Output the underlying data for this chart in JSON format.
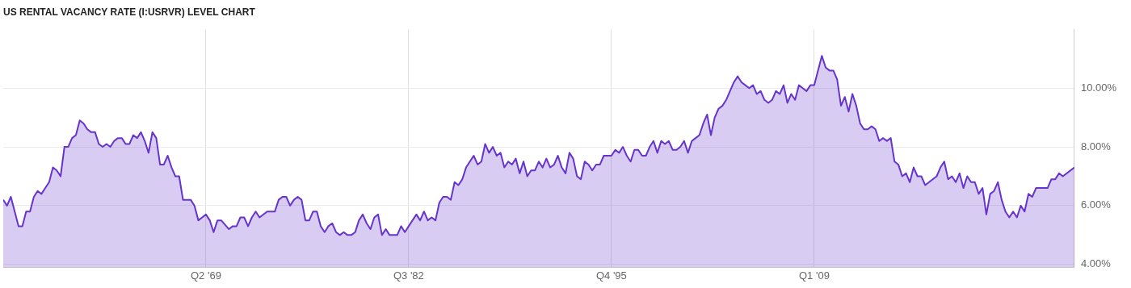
{
  "chart_data": {
    "type": "area",
    "title": "US RENTAL VACANCY RATE (I:USRVR) LEVEL CHART",
    "color": "#6633cc",
    "x": [
      "1956-01",
      "1956-04",
      "1956-07",
      "1957-01",
      "1957-04",
      "1957-07",
      "1957-10",
      "1958-01",
      "1958-04",
      "1958-07",
      "1958-10",
      "1959-01",
      "1959-04",
      "1959-07",
      "1959-10",
      "1960-01",
      "1960-04",
      "1960-07",
      "1960-10",
      "1961-01",
      "1961-04",
      "1961-07",
      "1961-10",
      "1962-01",
      "1962-04",
      "1962-07",
      "1962-10",
      "1963-01",
      "1963-04",
      "1963-07",
      "1963-10",
      "1964-01",
      "1964-04",
      "1964-07",
      "1964-10",
      "1965-01",
      "1965-04",
      "1965-07",
      "1965-10",
      "1966-01",
      "1966-04",
      "1966-07",
      "1966-10",
      "1967-01",
      "1967-04",
      "1967-07",
      "1967-10",
      "1968-01",
      "1968-04",
      "1968-07",
      "1968-10",
      "1969-01",
      "1969-04",
      "1969-07",
      "1969-10",
      "1970-01",
      "1970-04",
      "1970-10",
      "1971-01",
      "1971-04",
      "1971-07",
      "1971-10",
      "1972-01",
      "1972-04",
      "1972-07",
      "1972-10",
      "1973-04",
      "1973-10",
      "1974-01",
      "1974-04",
      "1974-07",
      "1974-10",
      "1975-01",
      "1975-04",
      "1975-07",
      "1975-10",
      "1976-01",
      "1976-04",
      "1976-07",
      "1976-10",
      "1977-01",
      "1977-04",
      "1977-07",
      "1977-10",
      "1978-01",
      "1978-04",
      "1978-07",
      "1978-10",
      "1979-01",
      "1979-04",
      "1979-07",
      "1979-10",
      "1980-01",
      "1980-04",
      "1980-07",
      "1980-10",
      "1981-01",
      "1981-04",
      "1981-10",
      "1982-01",
      "1982-04",
      "1982-07",
      "1983-01",
      "1983-04",
      "1983-07",
      "1983-10",
      "1984-01",
      "1984-04",
      "1984-07",
      "1984-10",
      "1985-01",
      "1985-04",
      "1985-07",
      "1985-10",
      "1986-01",
      "1986-04",
      "1986-07",
      "1986-10",
      "1987-01",
      "1987-04",
      "1987-07",
      "1987-10",
      "1988-01",
      "1988-04",
      "1988-07",
      "1988-10",
      "1989-01",
      "1989-04",
      "1989-07",
      "1989-10",
      "1990-01",
      "1990-04",
      "1990-07",
      "1990-10",
      "1991-01",
      "1991-04",
      "1991-07",
      "1991-10",
      "1992-01",
      "1992-04",
      "1992-07",
      "1992-10",
      "1993-01",
      "1993-04",
      "1993-07",
      "1993-10",
      "1994-01",
      "1994-04",
      "1994-07",
      "1994-10",
      "1995-01",
      "1995-04",
      "1995-10",
      "1996-01",
      "1996-04",
      "1996-07",
      "1996-10",
      "1997-01",
      "1997-04",
      "1997-07",
      "1997-10",
      "1998-01",
      "1998-04",
      "1998-07",
      "1998-10",
      "1999-01",
      "1999-04",
      "1999-07",
      "1999-10",
      "2000-01",
      "2000-04",
      "2000-07",
      "2000-10",
      "2001-01",
      "2001-04",
      "2001-07",
      "2001-10",
      "2002-01",
      "2002-04",
      "2002-07",
      "2002-10",
      "2003-01",
      "2003-04",
      "2003-07",
      "2003-10",
      "2004-01",
      "2004-04",
      "2004-07",
      "2004-10",
      "2005-01",
      "2005-04",
      "2005-07",
      "2005-10",
      "2006-01",
      "2006-04",
      "2006-07",
      "2006-10",
      "2007-01",
      "2007-04",
      "2007-07",
      "2007-10",
      "2008-01",
      "2008-04",
      "2008-07",
      "2008-10",
      "2009-01",
      "2009-07",
      "2009-10",
      "2010-01",
      "2010-04",
      "2010-07",
      "2010-10",
      "2011-01",
      "2011-04",
      "2011-07",
      "2011-10",
      "2012-01",
      "2012-04",
      "2012-07",
      "2012-10",
      "2013-01",
      "2013-04",
      "2013-07",
      "2013-10",
      "2014-01",
      "2014-04",
      "2014-07",
      "2014-10",
      "2015-01",
      "2015-04",
      "2015-07",
      "2015-10",
      "2016-01",
      "2016-04",
      "2017-01",
      "2017-04",
      "2017-07",
      "2017-10",
      "2018-01",
      "2018-04",
      "2018-07",
      "2018-10",
      "2019-01",
      "2019-04",
      "2019-07",
      "2019-10",
      "2020-01",
      "2020-04",
      "2020-07",
      "2020-10",
      "2021-01",
      "2021-04",
      "2021-07",
      "2021-10",
      "2022-01",
      "2022-04",
      "2022-07",
      "2022-10",
      "2023-01",
      "2023-04",
      "2023-07",
      "2024-04",
      "2024-07",
      "2024-10",
      "2025-01",
      "2025-04",
      "2026-01"
    ],
    "values": [
      6.2,
      6.0,
      6.3,
      5.3,
      5.3,
      5.8,
      5.8,
      6.3,
      6.5,
      6.4,
      6.6,
      6.8,
      7.3,
      7.2,
      7.0,
      8.0,
      8.0,
      8.3,
      8.4,
      8.9,
      8.8,
      8.6,
      8.5,
      8.5,
      8.1,
      8.0,
      8.1,
      8.0,
      8.2,
      8.3,
      8.3,
      8.1,
      8.1,
      8.4,
      8.3,
      8.5,
      8.2,
      7.8,
      8.5,
      8.3,
      7.4,
      7.4,
      7.7,
      7.3,
      7.0,
      7.0,
      6.2,
      6.2,
      6.2,
      6.0,
      5.5,
      5.6,
      5.7,
      5.5,
      5.1,
      5.5,
      5.5,
      5.2,
      5.3,
      5.3,
      5.6,
      5.6,
      5.3,
      5.6,
      5.8,
      5.6,
      5.8,
      5.8,
      6.2,
      6.3,
      6.3,
      6.0,
      6.2,
      6.3,
      6.2,
      5.5,
      5.5,
      5.8,
      5.8,
      5.3,
      5.1,
      5.3,
      5.4,
      5.1,
      5.0,
      5.1,
      5.0,
      5.0,
      5.1,
      5.5,
      5.7,
      5.4,
      5.2,
      5.6,
      5.7,
      5.0,
      5.2,
      5.0,
      5.0,
      5.3,
      5.1,
      5.3,
      5.7,
      5.5,
      5.8,
      5.5,
      5.6,
      5.5,
      6.1,
      6.3,
      6.3,
      6.2,
      6.8,
      6.7,
      6.9,
      7.3,
      7.5,
      7.7,
      7.4,
      7.5,
      8.1,
      7.8,
      8.0,
      7.7,
      7.8,
      7.3,
      7.5,
      7.4,
      7.6,
      7.1,
      7.5,
      7.0,
      7.2,
      7.2,
      7.5,
      7.3,
      7.6,
      7.3,
      7.4,
      7.7,
      7.3,
      7.1,
      7.8,
      7.6,
      7.0,
      6.9,
      7.5,
      7.4,
      7.2,
      7.4,
      7.4,
      7.7,
      7.7,
      7.9,
      7.8,
      8.0,
      7.7,
      7.5,
      7.9,
      7.9,
      7.7,
      7.7,
      8.0,
      8.2,
      7.8,
      8.2,
      8.1,
      8.2,
      7.9,
      7.9,
      8.0,
      8.2,
      7.8,
      8.2,
      8.3,
      8.4,
      8.8,
      9.1,
      8.4,
      9.0,
      9.3,
      9.4,
      9.6,
      9.9,
      10.2,
      10.4,
      10.2,
      10.1,
      10.0,
      10.1,
      9.8,
      9.9,
      9.6,
      9.5,
      9.6,
      9.9,
      9.8,
      10.1,
      9.5,
      9.8,
      9.6,
      10.1,
      10.0,
      9.9,
      10.1,
      10.1,
      11.1,
      10.7,
      10.6,
      10.6,
      10.3,
      9.4,
      9.7,
      9.2,
      9.8,
      9.4,
      8.8,
      8.6,
      8.6,
      8.7,
      8.6,
      8.2,
      8.3,
      8.2,
      8.3,
      7.5,
      7.4,
      7.0,
      7.1,
      6.8,
      7.3,
      7.0,
      7.0,
      6.7,
      7.0,
      7.3,
      7.5,
      6.9,
      7.0,
      6.8,
      7.1,
      6.6,
      7.0,
      6.8,
      6.8,
      6.4,
      6.6,
      5.7,
      6.4,
      6.5,
      6.8,
      6.2,
      5.8,
      5.6,
      5.8,
      5.6,
      6.0,
      5.8,
      6.4,
      6.3,
      6.6,
      6.6,
      6.9,
      6.9,
      7.1,
      7.0,
      7.3
    ],
    "xlim": [
      "1956-01",
      "2026-01"
    ],
    "xticks": [
      {
        "value": "1969-04",
        "label": "Q2 '69"
      },
      {
        "value": "1982-07",
        "label": "Q3 '82"
      },
      {
        "value": "1995-10",
        "label": "Q4 '95"
      },
      {
        "value": "2009-01",
        "label": "Q1 '09"
      }
    ],
    "ylim": [
      3.9,
      12
    ],
    "yticks": [
      {
        "value": 4,
        "label": "4.00%"
      },
      {
        "value": 6,
        "label": "6.00%"
      },
      {
        "value": 8,
        "label": "8.00%"
      },
      {
        "value": 10,
        "label": "10.00%"
      }
    ],
    "grid": true
  }
}
